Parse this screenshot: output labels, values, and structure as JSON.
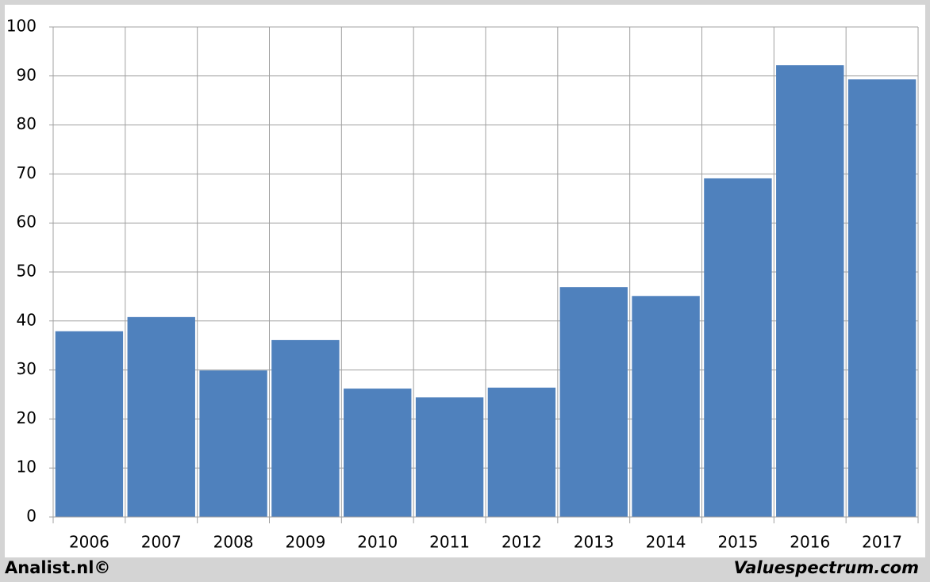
{
  "chart_data": {
    "type": "bar",
    "categories": [
      "2006",
      "2007",
      "2008",
      "2009",
      "2010",
      "2011",
      "2012",
      "2013",
      "2014",
      "2015",
      "2016",
      "2017"
    ],
    "values": [
      37.9,
      40.8,
      29.9,
      36.1,
      26.2,
      24.4,
      26.4,
      46.9,
      45.1,
      69.1,
      92.2,
      89.3
    ],
    "color": "#4f81bd",
    "ylim": [
      0,
      100
    ],
    "yticks": [
      0,
      10,
      20,
      30,
      40,
      50,
      60,
      70,
      80,
      90,
      100
    ],
    "grid": true
  },
  "footer": {
    "left": "Analist.nl©",
    "right": "Valuespectrum.com"
  }
}
